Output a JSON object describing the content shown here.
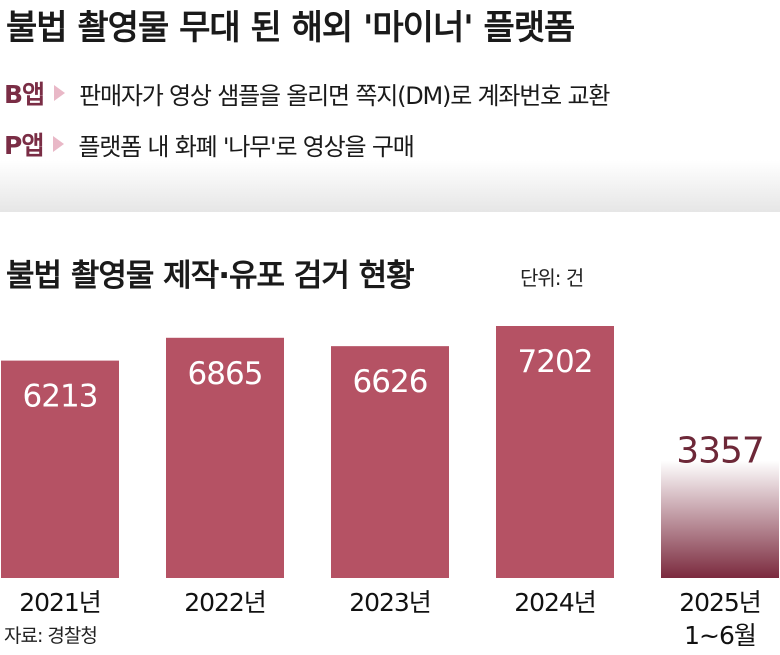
{
  "title": "불법 촬영물 무대 된 해외 '마이너' 플랫폼",
  "apps": [
    {
      "label": "B앱",
      "text": "판매자가 영상 샘플을 올리면 쪽지(DM)로 계좌번호 교환"
    },
    {
      "label": "P앱",
      "text": "플랫폼 내 화폐 '나무'로 영상을 구매"
    }
  ],
  "subtitle": "불법 촬영물 제작·유포 검거 현황",
  "unit": "단위: 건",
  "source": "자료: 경찰청",
  "colors": {
    "bar": "#b55264",
    "bar_partial_top": "#ffffff",
    "bar_partial_bottom": "#7b2a3e",
    "partial_label": "#6d2838",
    "accent": "#7a2d45"
  },
  "chart_data": {
    "type": "bar",
    "categories": [
      "2021년",
      "2022년",
      "2023년",
      "2024년",
      "2025년 1~6월"
    ],
    "values": [
      6213,
      6865,
      6626,
      7202,
      3357
    ],
    "title": "불법 촬영물 제작·유포 검거 현황",
    "unit": "단위: 건",
    "ylim": [
      0,
      7202
    ],
    "grid": false,
    "legend": "none",
    "highlight_last": true
  }
}
